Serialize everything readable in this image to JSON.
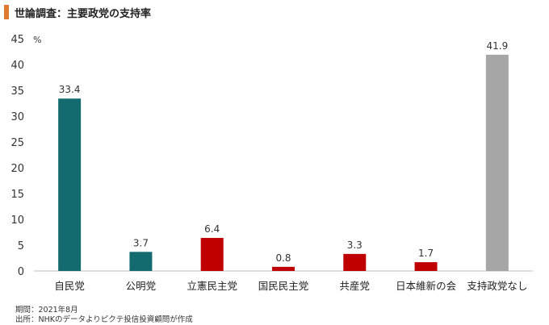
{
  "title": "世論調査：主要政党の支持率",
  "source_period": "期間：2021年8月",
  "source": "出所：NHKのデータよりピクテ投信投資顧問が作成",
  "chart_data": {
    "type": "bar",
    "categories": [
      "自民党",
      "公明党",
      "立憲民主党",
      "国民民主党",
      "共産党",
      "日本維新の会",
      "支持政党なし"
    ],
    "values": [
      33.4,
      3.7,
      6.4,
      0.8,
      3.3,
      1.7,
      41.9
    ],
    "value_labels": [
      "33.4",
      "3.7",
      "6.4",
      "0.8",
      "3.3",
      "1.7",
      "41.9"
    ],
    "bar_colors": [
      "#136b70",
      "#136b70",
      "#c00000",
      "#c00000",
      "#c00000",
      "#c00000",
      "#a6a6a6"
    ],
    "unit": "%",
    "ylim": [
      0,
      45
    ],
    "yticks": [
      "0",
      "5",
      "10",
      "15",
      "20",
      "25",
      "30",
      "35",
      "40",
      "45"
    ],
    "grid": false,
    "legend": "none"
  }
}
